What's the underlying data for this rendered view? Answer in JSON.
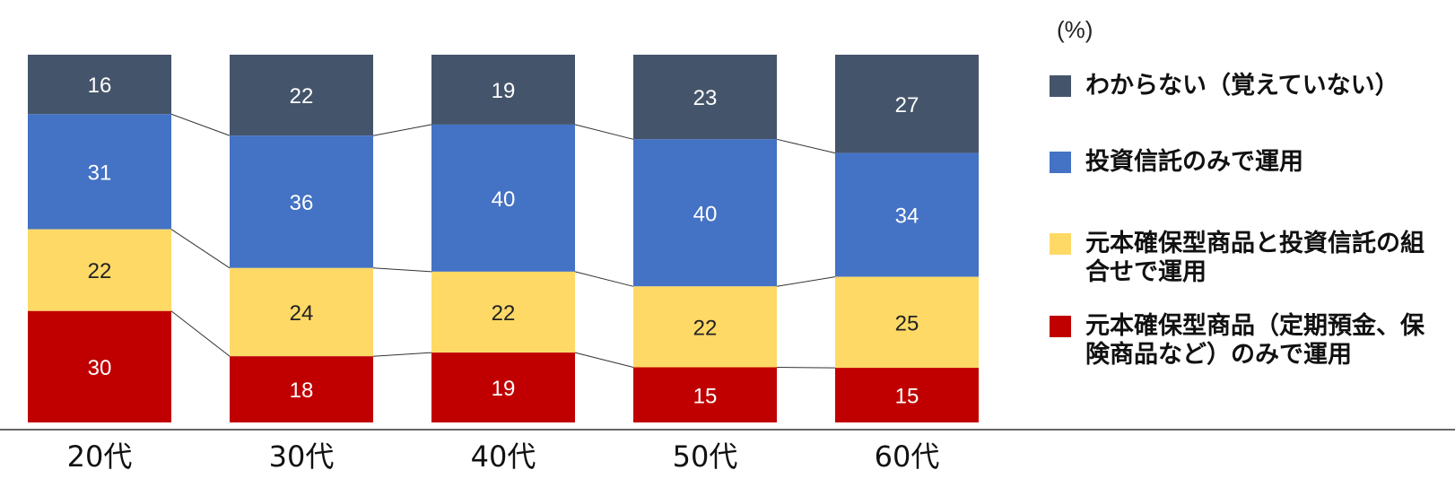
{
  "chart_data": {
    "type": "bar",
    "stacked": true,
    "normalized": true,
    "unit_label": "(%)",
    "categories": [
      "20代",
      "30代",
      "40代",
      "50代",
      "60代"
    ],
    "series": [
      {
        "name": "わからない（覚えていない）",
        "color": "#44546A",
        "values": [
          16,
          22,
          19,
          23,
          27
        ]
      },
      {
        "name": "投資信託のみで運用",
        "color": "#4472C4",
        "values": [
          31,
          36,
          40,
          40,
          34
        ]
      },
      {
        "name": "元本確保型商品と投資信託の組合せで運用",
        "color": "#FFD966",
        "values": [
          22,
          24,
          22,
          22,
          25
        ]
      },
      {
        "name": "元本確保型商品（定期預金、保険商品など）のみで運用",
        "color": "#C00000",
        "values": [
          30,
          18,
          19,
          15,
          15
        ]
      }
    ],
    "legend_position": "right",
    "grid": false
  }
}
